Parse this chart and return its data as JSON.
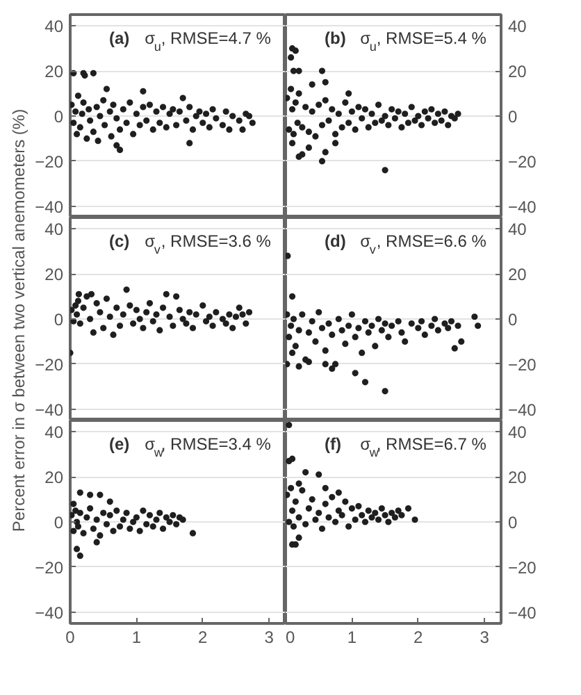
{
  "chart_data": [
    {
      "type": "scatter",
      "title": "(a) σ$_{u}$, RMSE=4.7 %",
      "color": "#1f1f1f",
      "marker": "circle",
      "grid": "y",
      "tick_labels": "y",
      "xlim": [
        0,
        3.25
      ],
      "ylim": [
        -45,
        45
      ],
      "xticks": [
        0,
        1,
        2,
        3
      ],
      "yticks": [
        -40,
        -20,
        0,
        20,
        40
      ],
      "x": [
        0.02,
        0.05,
        0.08,
        0.1,
        0.12,
        0.15,
        0.18,
        0.2,
        0.25,
        0.28,
        0.3,
        0.35,
        0.4,
        0.42,
        0.45,
        0.5,
        0.52,
        0.6,
        0.62,
        0.65,
        0.7,
        0.75,
        0.8,
        0.85,
        0.9,
        0.95,
        1.0,
        1.05,
        1.1,
        1.15,
        1.2,
        1.25,
        1.3,
        1.35,
        1.4,
        1.45,
        1.5,
        1.55,
        1.6,
        1.65,
        1.75,
        1.8,
        1.85,
        1.9,
        1.95,
        2.0,
        2.05,
        2.1,
        2.15,
        2.2,
        2.3,
        2.35,
        2.4,
        2.45,
        2.55,
        2.6,
        2.65,
        2.7,
        2.75,
        0.05,
        0.2,
        0.22,
        0.35,
        0.55,
        0.75,
        0.7,
        1.1,
        1.7,
        1.8
      ],
      "values": [
        5,
        -3,
        2,
        -8,
        9,
        -5,
        1,
        6,
        -10,
        3,
        -2,
        -7,
        4,
        -11,
        0,
        7,
        -4,
        2,
        -9,
        5,
        -1,
        -6,
        3,
        -3,
        6,
        -8,
        1,
        -4,
        4,
        -2,
        5,
        -6,
        2,
        -3,
        4,
        -5,
        1,
        3,
        -4,
        2,
        -2,
        4,
        -6,
        0,
        2,
        -3,
        1,
        -5,
        3,
        -1,
        -4,
        2,
        -6,
        0,
        -2,
        -6,
        1,
        0,
        -3,
        19,
        19,
        18,
        19,
        12,
        -15,
        -13,
        11,
        8,
        -12
      ]
    },
    {
      "type": "scatter",
      "title": "(b) σ$_{u}$, RMSE=5.4 %",
      "color": "#1f1f1f",
      "marker": "circle",
      "grid": "y",
      "tick_labels": "y",
      "xlim": [
        0,
        3.25
      ],
      "ylim": [
        -45,
        45
      ],
      "xticks": [
        0,
        1,
        2,
        3
      ],
      "yticks": [
        -40,
        -20,
        0,
        20,
        40
      ],
      "x": [
        0.02,
        0.05,
        0.08,
        0.1,
        0.12,
        0.15,
        0.18,
        0.2,
        0.25,
        0.3,
        0.35,
        0.4,
        0.45,
        0.5,
        0.55,
        0.6,
        0.65,
        0.7,
        0.75,
        0.8,
        0.85,
        0.9,
        0.95,
        1.0,
        1.05,
        1.1,
        1.15,
        1.2,
        1.25,
        1.3,
        1.35,
        1.4,
        1.45,
        1.5,
        1.55,
        1.6,
        1.65,
        1.7,
        1.75,
        1.8,
        1.85,
        1.9,
        1.95,
        2.0,
        2.05,
        2.1,
        2.15,
        2.2,
        2.25,
        2.3,
        2.35,
        2.4,
        2.45,
        2.5,
        2.55,
        2.6,
        0.1,
        0.08,
        0.15,
        0.12,
        0.2,
        0.55,
        0.6,
        0.4,
        0.1,
        0.2,
        0.25,
        0.55,
        0.6,
        0.75,
        0.95,
        1.5,
        0.35
      ],
      "values": [
        8,
        -6,
        12,
        3,
        -8,
        6,
        -3,
        10,
        -5,
        4,
        -7,
        2,
        -9,
        5,
        -4,
        7,
        -2,
        3,
        -8,
        1,
        -5,
        6,
        -3,
        2,
        -6,
        4,
        -1,
        3,
        -5,
        1,
        -3,
        5,
        -2,
        0,
        -4,
        3,
        -1,
        2,
        -5,
        1,
        -3,
        4,
        -2,
        0,
        -4,
        2,
        -1,
        3,
        -3,
        1,
        -2,
        2,
        -4,
        0,
        -1,
        1,
        30,
        26,
        29,
        20,
        20,
        20,
        15,
        14,
        -12,
        -18,
        -17,
        -20,
        -16,
        -12,
        10,
        -24,
        -14
      ]
    },
    {
      "type": "scatter",
      "title": "(c) σ$_{v}$, RMSE=3.6 %",
      "ylabel": "Percent error in σ between two vertical anemometers (%)",
      "color": "#1f1f1f",
      "marker": "circle",
      "grid": "y",
      "tick_labels": "y",
      "xlim": [
        0,
        3.25
      ],
      "ylim": [
        -45,
        45
      ],
      "xticks": [
        0,
        1,
        2,
        3
      ],
      "yticks": [
        -40,
        -20,
        0,
        20,
        40
      ],
      "x": [
        0.02,
        0.05,
        0.08,
        0.1,
        0.12,
        0.15,
        0.2,
        0.25,
        0.3,
        0.35,
        0.4,
        0.45,
        0.5,
        0.55,
        0.6,
        0.65,
        0.7,
        0.75,
        0.8,
        0.9,
        0.95,
        1.0,
        1.05,
        1.1,
        1.15,
        1.2,
        1.25,
        1.3,
        1.35,
        1.4,
        1.5,
        1.55,
        1.65,
        1.7,
        1.75,
        1.8,
        1.85,
        1.9,
        2.0,
        2.05,
        2.1,
        2.15,
        2.2,
        2.3,
        2.35,
        2.4,
        2.45,
        2.5,
        2.55,
        0.0,
        0.85,
        1.45,
        1.6,
        2.6,
        2.7,
        2.65,
        0.13,
        0.32
      ],
      "values": [
        4,
        -1,
        6,
        2,
        8,
        -2,
        5,
        10,
        0,
        -6,
        7,
        3,
        -4,
        9,
        1,
        -7,
        5,
        -3,
        2,
        6,
        -2,
        4,
        0,
        -4,
        3,
        7,
        -1,
        2,
        -5,
        5,
        1,
        -3,
        4,
        0,
        -2,
        3,
        -4,
        2,
        6,
        -1,
        1,
        -3,
        3,
        0,
        -2,
        2,
        -4,
        1,
        5,
        -15,
        13,
        11,
        10,
        2,
        3,
        -2,
        11,
        11
      ]
    },
    {
      "type": "scatter",
      "title": "(d) σ$_{v}$, RMSE=6.6 %",
      "color": "#1f1f1f",
      "marker": "circle",
      "grid": "y",
      "tick_labels": "y",
      "xlim": [
        0,
        3.25
      ],
      "ylim": [
        -45,
        45
      ],
      "xticks": [
        0,
        1,
        2,
        3
      ],
      "yticks": [
        -40,
        -20,
        0,
        20,
        40
      ],
      "x": [
        0.02,
        0.05,
        0.08,
        0.1,
        0.12,
        0.15,
        0.2,
        0.25,
        0.3,
        0.35,
        0.4,
        0.45,
        0.5,
        0.55,
        0.6,
        0.65,
        0.7,
        0.75,
        0.8,
        0.85,
        0.9,
        0.95,
        1.0,
        1.05,
        1.1,
        1.15,
        1.2,
        1.25,
        1.3,
        1.35,
        1.4,
        1.45,
        1.5,
        1.55,
        1.6,
        1.7,
        1.75,
        1.8,
        1.9,
        2.0,
        2.05,
        2.1,
        2.2,
        2.25,
        2.3,
        2.4,
        2.45,
        2.5,
        2.6,
        0.03,
        1.5,
        1.2,
        1.05,
        0.02,
        2.55,
        2.65,
        2.85,
        2.9,
        0.1,
        0.2,
        0.35,
        0.7,
        0.6
      ],
      "values": [
        2,
        -8,
        -3,
        -15,
        0,
        -12,
        -5,
        2,
        -18,
        -6,
        -1,
        -10,
        3,
        -4,
        -14,
        -2,
        -7,
        -20,
        0,
        -5,
        -11,
        -3,
        2,
        -8,
        -4,
        -15,
        -1,
        -6,
        -3,
        -12,
        0,
        -5,
        -2,
        -8,
        -3,
        -1,
        -6,
        -10,
        -2,
        -4,
        -1,
        -7,
        -3,
        0,
        -5,
        -2,
        -4,
        -1,
        -3,
        28,
        -32,
        -28,
        -24,
        -20,
        -13,
        -10,
        1,
        -3,
        10,
        -21,
        -19,
        -22,
        -20
      ]
    },
    {
      "type": "scatter",
      "title": "(e) σ$_{w}$, RMSE=3.4 %",
      "color": "#1f1f1f",
      "marker": "circle",
      "grid": "y",
      "xlim": [
        0,
        3.25
      ],
      "ylim": [
        -45,
        45
      ],
      "xticks": [
        0,
        1,
        2,
        3
      ],
      "yticks": [
        -40,
        -20,
        0,
        20,
        40
      ],
      "x": [
        0.02,
        0.05,
        0.08,
        0.1,
        0.12,
        0.15,
        0.2,
        0.25,
        0.3,
        0.35,
        0.4,
        0.45,
        0.5,
        0.55,
        0.6,
        0.65,
        0.7,
        0.75,
        0.8,
        0.85,
        0.9,
        0.95,
        1.0,
        1.05,
        1.1,
        1.15,
        1.2,
        1.25,
        1.3,
        1.35,
        1.4,
        1.45,
        1.5,
        1.55,
        1.6,
        1.65,
        1.7,
        0.1,
        0.15,
        0.15,
        0.3,
        0.45,
        0.6,
        1.85,
        0.05,
        0.4
      ],
      "values": [
        3,
        -4,
        5,
        0,
        -2,
        4,
        -5,
        2,
        6,
        -3,
        1,
        -6,
        4,
        -1,
        3,
        -4,
        5,
        -2,
        1,
        4,
        -3,
        0,
        2,
        -4,
        5,
        -1,
        3,
        -2,
        1,
        4,
        -3,
        2,
        0,
        3,
        -1,
        2,
        1,
        -12,
        -15,
        13,
        12,
        12,
        9,
        -5,
        8,
        -9
      ]
    },
    {
      "type": "scatter",
      "title": "(f) σ$_{w}$, RMSE=6.7 %",
      "color": "#1f1f1f",
      "marker": "circle",
      "grid": "y",
      "xlim": [
        0,
        3.25
      ],
      "ylim": [
        -45,
        45
      ],
      "xticks": [
        0,
        1,
        2,
        3
      ],
      "yticks": [
        -40,
        -20,
        0,
        20,
        40
      ],
      "x": [
        0.02,
        0.05,
        0.08,
        0.1,
        0.12,
        0.15,
        0.2,
        0.25,
        0.3,
        0.35,
        0.4,
        0.45,
        0.5,
        0.55,
        0.6,
        0.65,
        0.7,
        0.75,
        0.8,
        0.85,
        0.9,
        0.95,
        1.0,
        1.05,
        1.1,
        1.15,
        1.2,
        1.25,
        1.3,
        1.35,
        1.4,
        1.45,
        1.5,
        1.55,
        1.6,
        1.65,
        1.7,
        1.75,
        0.05,
        0.1,
        0.3,
        0.5,
        0.1,
        0.15,
        0.2,
        1.95,
        1.85,
        0.05,
        0.2,
        0.6,
        0.8
      ],
      "values": [
        12,
        0,
        15,
        5,
        -2,
        9,
        2,
        14,
        -1,
        6,
        10,
        1,
        4,
        -3,
        8,
        2,
        11,
        0,
        5,
        3,
        9,
        -2,
        6,
        1,
        7,
        3,
        0,
        5,
        2,
        4,
        1,
        6,
        3,
        0,
        4,
        2,
        5,
        3,
        27,
        28,
        22,
        21,
        -10,
        -10,
        -7,
        1,
        6,
        43,
        17,
        15,
        13
      ]
    }
  ]
}
